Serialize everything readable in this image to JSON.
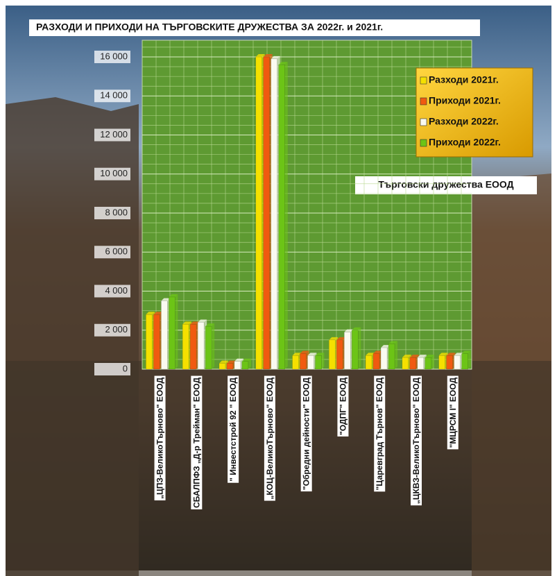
{
  "chart_data": {
    "type": "bar",
    "title": "РАЗХОДИ И ПРИХОДИ НА ТЪРГОВСКИТЕ ДРУЖЕСТВА ЗА  2022г. и 2021г.",
    "subtitle": "Търговски дружества ЕООД",
    "categories": [
      "„ЦПЗ-ВеликоТърново\" ЕООД",
      "СБАЛПФЗ „Д-р Трейман\" ЕООД",
      "\" Инвестстрой 92 \" ЕООД",
      "„КОЦ-ВеликоТърново\" ЕООД",
      "\"Обредни дейности\" ЕООД",
      "\"ОДПГ\" ЕООД",
      "\"Царевград Търнов\" ЕООД",
      "„ЦКВЗ-ВеликоТърново\" ЕООД",
      "\"МЦРСМ I\" ЕООД"
    ],
    "series": [
      {
        "name": "Разходи 2021г.",
        "color": "#f5e000",
        "values": [
          2800,
          2300,
          300,
          16000,
          700,
          1500,
          700,
          600,
          700
        ]
      },
      {
        "name": "Приходи 2021г.",
        "color": "#f05a10",
        "values": [
          2800,
          2300,
          300,
          16000,
          800,
          1500,
          800,
          600,
          700
        ]
      },
      {
        "name": "Разходи 2022г.",
        "color": "#fafaf0",
        "values": [
          3500,
          2400,
          400,
          15900,
          700,
          1900,
          1100,
          600,
          700
        ]
      },
      {
        "name": "Приходи 2022г.",
        "color": "#6cc416",
        "values": [
          3700,
          2200,
          400,
          15600,
          700,
          2000,
          1300,
          600,
          800
        ]
      }
    ],
    "ylim": [
      0,
      16000
    ],
    "yticks": [
      0,
      {
        "value": 2000,
        "label": "2 000"
      },
      {
        "value": 4000,
        "label": "4 000"
      },
      {
        "value": 6000,
        "label": "6 000"
      },
      {
        "value": 8000,
        "label": "8 000"
      },
      {
        "value": 10000,
        "label": "10 000"
      },
      {
        "value": 12000,
        "label": "12 000"
      },
      {
        "value": 14000,
        "label": "14 000"
      },
      {
        "value": 16000,
        "label": "16 000"
      }
    ],
    "grid": true,
    "legend": "top-right"
  }
}
